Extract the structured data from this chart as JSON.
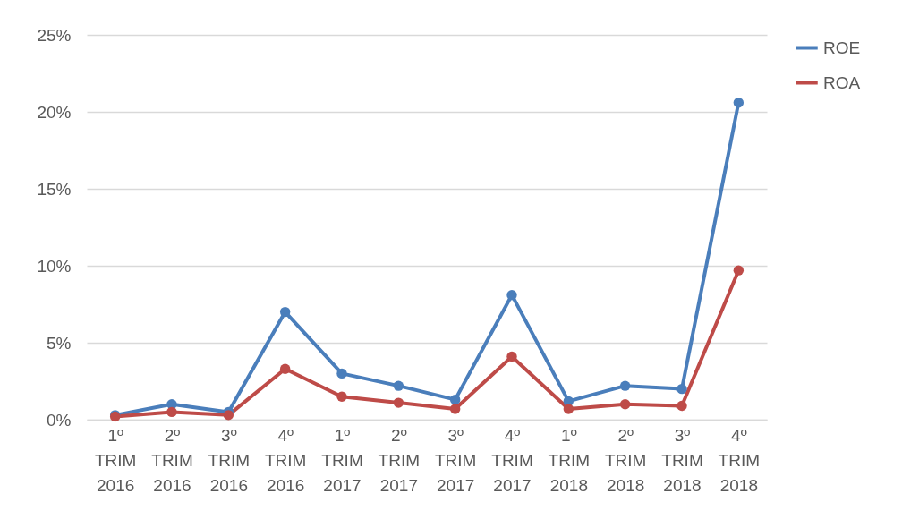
{
  "chart_data": {
    "type": "line",
    "categories": [
      "1º TRIM 2016",
      "2º TRIM 2016",
      "3º TRIM 2016",
      "4º TRIM 2016",
      "1º TRIM 2017",
      "2º TRIM 2017",
      "3º TRIM 2017",
      "4º TRIM 2017",
      "1º TRIM 2018",
      "2º TRIM 2018",
      "3º TRIM 2018",
      "4º TRIM 2018"
    ],
    "series": [
      {
        "name": "ROE",
        "color": "#4a7ebb",
        "values": [
          0.3,
          1.0,
          0.5,
          7.0,
          3.0,
          2.2,
          1.3,
          8.1,
          1.2,
          2.2,
          2.0,
          20.6
        ]
      },
      {
        "name": "ROA",
        "color": "#be4b48",
        "values": [
          0.2,
          0.5,
          0.3,
          3.3,
          1.5,
          1.1,
          0.7,
          4.1,
          0.7,
          1.0,
          0.9,
          9.7
        ]
      }
    ],
    "ylim": [
      0,
      25
    ],
    "yticks": [
      {
        "value": 0,
        "label": "0%"
      },
      {
        "value": 5,
        "label": "5%"
      },
      {
        "value": 10,
        "label": "10%"
      },
      {
        "value": 15,
        "label": "15%"
      },
      {
        "value": 20,
        "label": "20%"
      },
      {
        "value": 25,
        "label": "25%"
      }
    ],
    "grid": "y",
    "legend": "right",
    "marker": "circle",
    "line_style": "solid"
  }
}
